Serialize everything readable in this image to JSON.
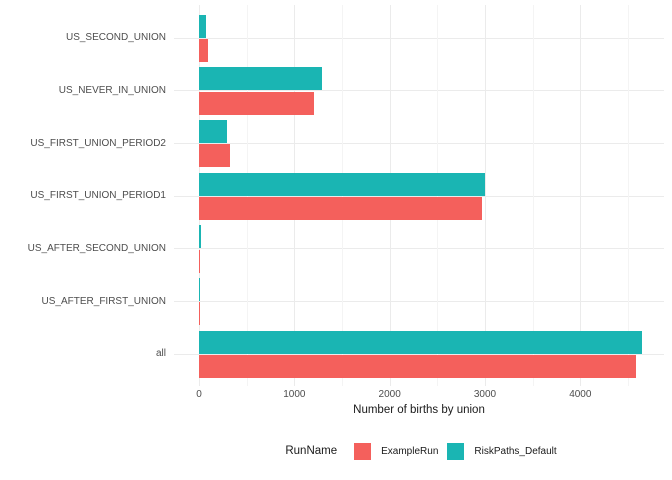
{
  "chart_data": {
    "type": "bar",
    "orientation": "horizontal",
    "title": "",
    "xlabel": "Number of births by union",
    "ylabel": "",
    "categories": [
      "US_SECOND_UNION",
      "US_NEVER_IN_UNION",
      "US_FIRST_UNION_PERIOD2",
      "US_FIRST_UNION_PERIOD1",
      "US_AFTER_SECOND_UNION",
      "US_AFTER_FIRST_UNION",
      "all"
    ],
    "series": [
      {
        "name": "ExampleRun",
        "color": "#F4605C",
        "values": [
          95,
          1210,
          325,
          2970,
          12,
          8,
          4585
        ]
      },
      {
        "name": "RiskPaths_Default",
        "color": "#1AB5B3",
        "values": [
          70,
          1290,
          290,
          3000,
          16,
          13,
          4650
        ]
      }
    ],
    "group_order_top_first": [
      "RiskPaths_Default",
      "ExampleRun"
    ],
    "x_axis": {
      "tick_labels": [
        "0",
        "1000",
        "2000",
        "3000",
        "4000"
      ],
      "tick_values": [
        0,
        1000,
        2000,
        3000,
        4000
      ],
      "minor_values": [
        500,
        1500,
        2500,
        3500,
        4500
      ],
      "range": [
        0,
        4880
      ]
    },
    "legend": {
      "title": "RunName",
      "position": "bottom",
      "entries": [
        "ExampleRun",
        "RiskPaths_Default"
      ]
    },
    "grid": true
  },
  "colors": {
    "background": "#FFFFFF",
    "grid_major": "#EBEBEB",
    "grid_minor": "#F4F4F4",
    "axis_text": "#4D4D4D",
    "title_text": "#1A1A1A"
  }
}
